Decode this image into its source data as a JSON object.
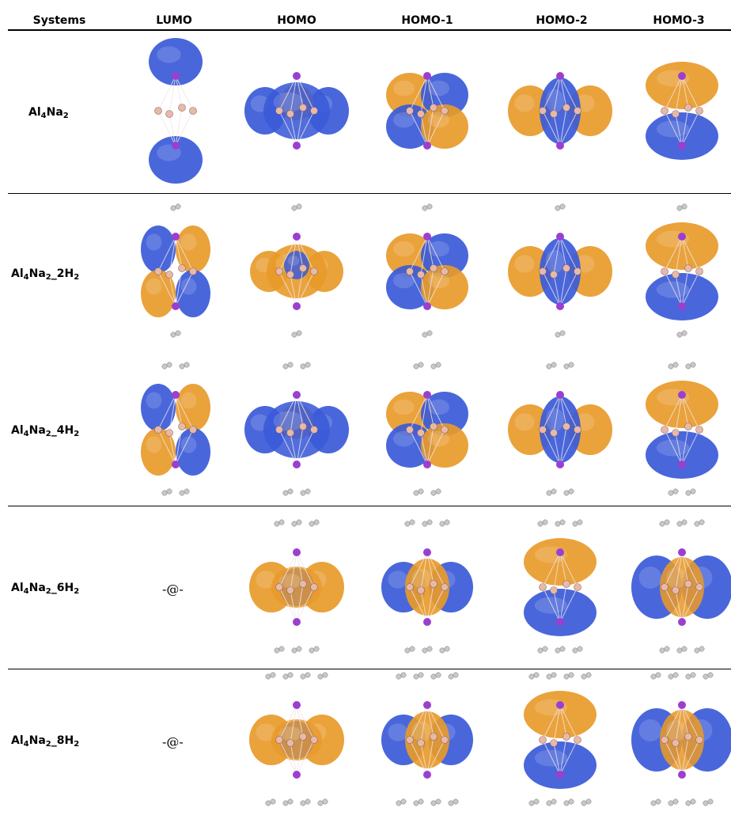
{
  "headers": [
    "Systems",
    "LUMO",
    "HOMO",
    "HOMO-1",
    "HOMO-2",
    "HOMO-3"
  ],
  "rows": [
    {
      "label_main": "Al",
      "sub1": "4",
      "mid": "Na",
      "sub2": "2",
      "suffix": "",
      "suffix_sub": "",
      "lumo_text": ""
    },
    {
      "label_main": "Al",
      "sub1": "4",
      "mid": "Na",
      "sub2": "2",
      "suffix": "_2H",
      "suffix_sub": "2",
      "lumo_text": ""
    },
    {
      "label_main": "Al",
      "sub1": "4",
      "mid": "Na",
      "sub2": "2",
      "suffix": "_4H",
      "suffix_sub": "2",
      "lumo_text": ""
    },
    {
      "label_main": "Al",
      "sub1": "4",
      "mid": "Na",
      "sub2": "2",
      "suffix": "_6H",
      "suffix_sub": "2",
      "lumo_text": "-@-"
    },
    {
      "label_main": "Al",
      "sub1": "4",
      "mid": "Na",
      "sub2": "2",
      "suffix": "_8H",
      "suffix_sub": "2",
      "lumo_text": "-@-"
    }
  ],
  "colors": {
    "blue_lobe": "#3a5ad8",
    "orange_lobe": "#e89a2a",
    "na_atom": "#9b3fd1",
    "al_atom": "#e8b8a8",
    "h_atom": "#c8c8c8"
  }
}
